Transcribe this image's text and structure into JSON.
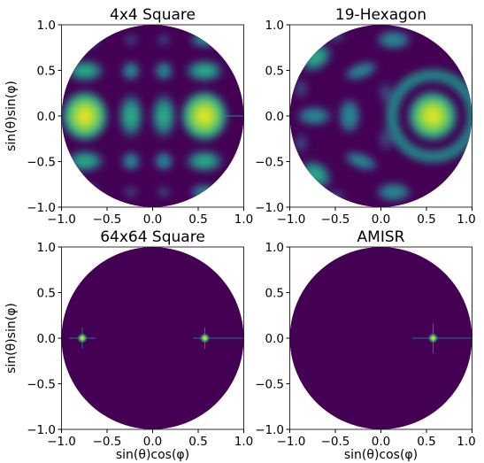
{
  "chart_data": [
    {
      "type": "heatmap",
      "title": "4x4 Square",
      "xlabel": "",
      "ylabel": "sin(θ)sin(φ)",
      "xlim": [
        -1.0,
        1.0
      ],
      "ylim": [
        -1.0,
        1.0
      ],
      "xticks": [
        "−1.0",
        "−0.5",
        "0.0",
        "0.5",
        "1.0"
      ],
      "yticks": [
        "−1.0",
        "−0.5",
        "0.0",
        "0.5",
        "1.0"
      ],
      "colormap": "viridis",
      "grid": false,
      "main_lobes": [
        {
          "x": -0.75,
          "y": 0.0
        },
        {
          "x": 0.55,
          "y": 0.0
        }
      ]
    },
    {
      "type": "heatmap",
      "title": "19-Hexagon",
      "xlabel": "",
      "ylabel": "",
      "xlim": [
        -1.0,
        1.0
      ],
      "ylim": [
        -1.0,
        1.0
      ],
      "xticks": [
        "−1.0",
        "−0.5",
        "0.0",
        "0.5",
        "1.0"
      ],
      "yticks": [
        "−1.0",
        "−0.5",
        "0.0",
        "0.5",
        "1.0"
      ],
      "colormap": "viridis",
      "grid": false,
      "main_lobes": [
        {
          "x": 0.55,
          "y": 0.0
        },
        {
          "x": -0.72,
          "y": 0.65
        },
        {
          "x": -0.72,
          "y": -0.65
        }
      ]
    },
    {
      "type": "heatmap",
      "title": "64x64 Square",
      "xlabel": "sin(θ)cos(φ)",
      "ylabel": "sin(θ)sin(φ)",
      "xlim": [
        -1.0,
        1.0
      ],
      "ylim": [
        -1.0,
        1.0
      ],
      "xticks": [
        "−1.0",
        "−0.5",
        "0.0",
        "0.5",
        "1.0"
      ],
      "yticks": [
        "−1.0",
        "−0.5",
        "0.0",
        "0.5",
        "1.0"
      ],
      "colormap": "viridis",
      "grid": false,
      "main_lobes": [
        {
          "x": -0.77,
          "y": 0.0
        },
        {
          "x": 0.57,
          "y": 0.0
        }
      ]
    },
    {
      "type": "heatmap",
      "title": "AMISR",
      "xlabel": "sin(θ)cos(φ)",
      "ylabel": "",
      "xlim": [
        -1.0,
        1.0
      ],
      "ylim": [
        -1.0,
        1.0
      ],
      "xticks": [
        "−1.0",
        "−0.5",
        "0.0",
        "0.5",
        "1.0"
      ],
      "yticks": [
        "−1.0",
        "−0.5",
        "0.0",
        "0.5",
        "1.0"
      ],
      "colormap": "viridis",
      "grid": false,
      "main_lobes": [
        {
          "x": 0.57,
          "y": 0.0
        }
      ]
    }
  ],
  "colors": {
    "background": "#440154",
    "dark_teal": "#26828e",
    "teal": "#21918c",
    "green": "#5ec962",
    "yellow": "#fde725"
  }
}
